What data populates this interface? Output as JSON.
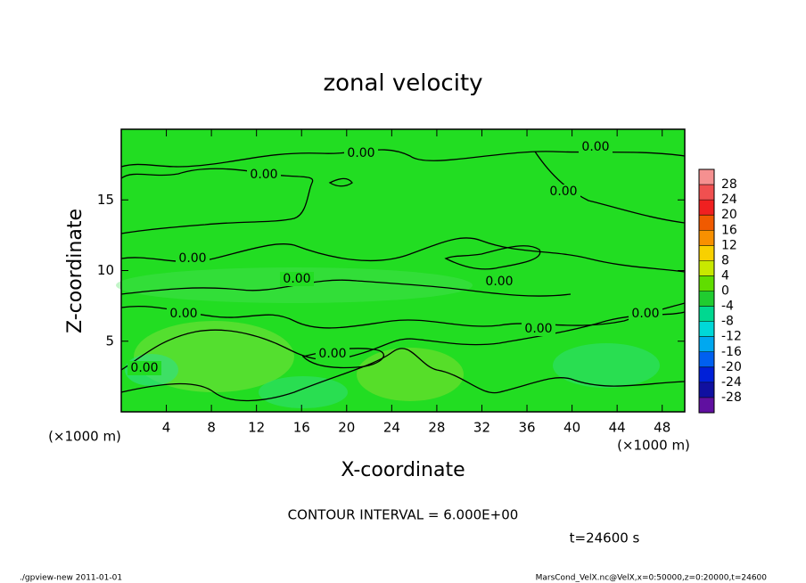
{
  "chart_data": {
    "type": "contour",
    "title": "zonal velocity",
    "x_label": "X-coordinate",
    "y_label": "Z-coordinate",
    "x_unit": "(×1000 m)",
    "y_unit": "(×1000 m)",
    "xlim": [
      0,
      50
    ],
    "xticks": [
      4,
      8,
      12,
      16,
      20,
      24,
      28,
      32,
      36,
      40,
      44,
      48
    ],
    "ylim": [
      0,
      20
    ],
    "yticks": [
      5,
      10,
      15
    ],
    "field_color": "#22dd22",
    "contour_levels": [
      {
        "value": 0,
        "label": "0.00"
      }
    ],
    "contour_interval": "CONTOUR INTERVAL = 6.000E+00",
    "time_label": "t=24600 s",
    "colorbar": {
      "levels": [
        28,
        24,
        20,
        16,
        12,
        8,
        4,
        0,
        -4,
        -8,
        -12,
        -16,
        -20,
        -24,
        -28
      ],
      "colors": [
        "#f59090",
        "#f05050",
        "#f02020",
        "#f05a00",
        "#f89000",
        "#f8d000",
        "#c8e800",
        "#60dd00",
        "#20cc30",
        "#00d890",
        "#00d8d8",
        "#00a8f0",
        "#0060f0",
        "#0020d8",
        "#1010a0",
        "#6010a0"
      ]
    },
    "footer_left": "./gpview-new  2011-01-01",
    "footer_right": "MarsCond_VelX.nc@VelX,x=0:50000,z=0:20000,t=24600"
  }
}
